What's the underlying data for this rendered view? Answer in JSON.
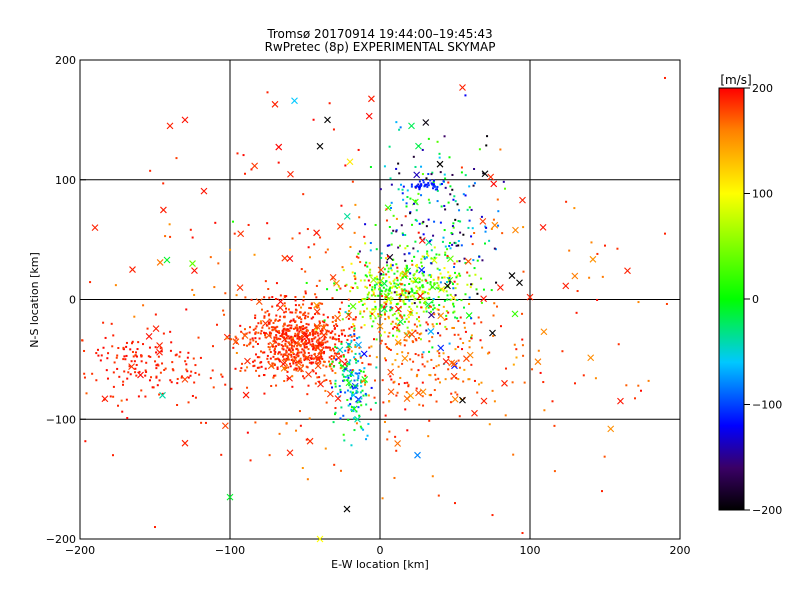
{
  "chart_data": {
    "type": "scatter",
    "title": "Tromsø 20170914 19:44:00–19:45:43",
    "subtitle": "RwPretec (8p) EXPERIMENTAL SKYMAP",
    "xlabel": "E-W location [km]",
    "ylabel": "N-S location [km]",
    "xlim": [
      -200,
      200
    ],
    "ylim": [
      -200,
      200
    ],
    "xticks": [
      -200,
      -100,
      0,
      100,
      200
    ],
    "yticks": [
      -200,
      -100,
      0,
      100,
      200
    ],
    "grid": true,
    "colorbar": {
      "label": "[m/s]",
      "ticks": [
        200,
        100,
        0,
        -100,
        -200
      ],
      "range": [
        -200,
        200
      ],
      "stops": [
        [
          -200,
          "#000000"
        ],
        [
          -160,
          "#3a0066"
        ],
        [
          -120,
          "#0000ff"
        ],
        [
          -60,
          "#00c8ff"
        ],
        [
          0,
          "#00ff00"
        ],
        [
          100,
          "#ffff00"
        ],
        [
          160,
          "#ff8000"
        ],
        [
          200,
          "#ff0000"
        ]
      ]
    },
    "clusters": [
      {
        "cx": -55,
        "cy": -35,
        "sx": 18,
        "sy": 16,
        "n": 700,
        "vmin": 170,
        "vmax": 200,
        "pcross": 0.05
      },
      {
        "cx": -155,
        "cy": -55,
        "sx": 22,
        "sy": 18,
        "n": 160,
        "vmin": 180,
        "vmax": 200,
        "pcross": 0.08
      },
      {
        "cx": 15,
        "cy": 5,
        "sx": 20,
        "sy": 16,
        "n": 420,
        "vmin": -20,
        "vmax": 120,
        "pcross": 0.05
      },
      {
        "cx": 35,
        "cy": 55,
        "sx": 22,
        "sy": 40,
        "n": 260,
        "vmin": -200,
        "vmax": 40,
        "pcross": 0.06
      },
      {
        "cx": 30,
        "cy": 95,
        "sx": 6,
        "sy": 2,
        "n": 40,
        "vmin": -120,
        "vmax": -100,
        "pcross": 0.0
      },
      {
        "cx": -18,
        "cy": -70,
        "sx": 6,
        "sy": 22,
        "n": 150,
        "vmin": -120,
        "vmax": 20,
        "pcross": 0.05
      },
      {
        "cx": 30,
        "cy": -40,
        "sx": 30,
        "sy": 25,
        "n": 220,
        "vmin": 140,
        "vmax": 200,
        "pcross": 0.07
      },
      {
        "cx": 0,
        "cy": -20,
        "sx": 100,
        "sy": 70,
        "n": 260,
        "vmin": 150,
        "vmax": 200,
        "pcross": 0.15
      },
      {
        "cx": -60,
        "cy": 40,
        "sx": 60,
        "sy": 60,
        "n": 60,
        "vmin": 180,
        "vmax": 200,
        "pcross": 0.4
      }
    ],
    "outliers": [
      [
        -140,
        145,
        190,
        "x"
      ],
      [
        -130,
        150,
        195,
        "x"
      ],
      [
        -70,
        163,
        190,
        "x"
      ],
      [
        -57,
        166,
        -60,
        "x"
      ],
      [
        -35,
        150,
        -200,
        "x"
      ],
      [
        -40,
        128,
        -200,
        "x"
      ],
      [
        -20,
        115,
        110,
        "x"
      ],
      [
        -190,
        60,
        190,
        "x"
      ],
      [
        -165,
        25,
        190,
        "x"
      ],
      [
        -142,
        33,
        -10,
        "x"
      ],
      [
        -125,
        30,
        40,
        "x"
      ],
      [
        -130,
        -120,
        190,
        "x"
      ],
      [
        -145,
        -80,
        -40,
        "x"
      ],
      [
        -100,
        -165,
        -10,
        "x"
      ],
      [
        -60,
        -128,
        190,
        "x"
      ],
      [
        -40,
        -200,
        100,
        "x"
      ],
      [
        -22,
        -175,
        -200,
        "x"
      ],
      [
        25,
        -130,
        -80,
        "x"
      ],
      [
        55,
        177,
        190,
        "x"
      ],
      [
        21,
        145,
        -20,
        "x"
      ],
      [
        40,
        113,
        -200,
        "x"
      ],
      [
        70,
        105,
        -200,
        "x"
      ],
      [
        95,
        83,
        190,
        "x"
      ],
      [
        88,
        20,
        -200,
        "x"
      ],
      [
        93,
        14,
        -200,
        "x"
      ],
      [
        100,
        2,
        190,
        "x"
      ],
      [
        165,
        24,
        190,
        "x"
      ],
      [
        90,
        -12,
        20,
        "x"
      ],
      [
        75,
        -28,
        -200,
        "x"
      ],
      [
        83,
        -70,
        190,
        "x"
      ],
      [
        63,
        -95,
        190,
        "x"
      ],
      [
        55,
        -84,
        -200,
        "x"
      ],
      [
        -15,
        -100,
        -40,
        "x"
      ],
      [
        -178,
        -130,
        190,
        "."
      ],
      [
        -150,
        -190,
        190,
        "."
      ],
      [
        148,
        -160,
        190,
        "."
      ],
      [
        150,
        45,
        190,
        "."
      ],
      [
        190,
        55,
        190,
        "."
      ],
      [
        190,
        185,
        190,
        "."
      ],
      [
        -75,
        173,
        190,
        "."
      ],
      [
        -90,
        105,
        190,
        "."
      ],
      [
        -95,
        122,
        190,
        "."
      ],
      [
        -98,
        65,
        10,
        "."
      ],
      [
        115,
        -85,
        190,
        "."
      ],
      [
        130,
        -70,
        190,
        "."
      ],
      [
        95,
        -195,
        190,
        "."
      ],
      [
        75,
        -180,
        190,
        "."
      ],
      [
        50,
        -170,
        190,
        "."
      ]
    ]
  }
}
